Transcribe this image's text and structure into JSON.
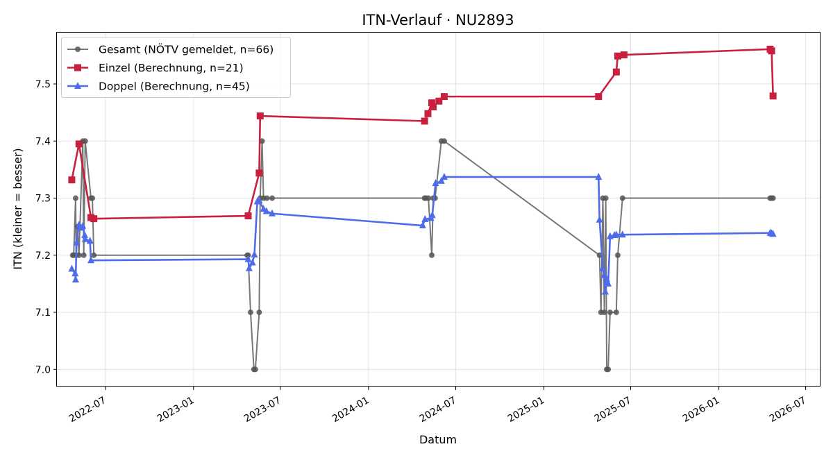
{
  "chart_data": {
    "type": "line",
    "title": "ITN-Verlauf · NU2893",
    "xlabel": "Datum",
    "ylabel": "ITN  (kleiner = besser)",
    "x_is_date": true,
    "xlim": [
      "2022-03-22",
      "2026-08-01"
    ],
    "ylim": [
      6.97,
      7.59
    ],
    "grid": true,
    "legend_position": "top-left",
    "x_ticks": [
      "2022-07-01",
      "2023-01-01",
      "2023-07-01",
      "2024-01-01",
      "2024-07-01",
      "2025-01-01",
      "2025-07-01",
      "2026-01-01",
      "2026-07-01"
    ],
    "x_tick_labels": [
      "2022-07",
      "2023-01",
      "2023-07",
      "2024-01",
      "2024-07",
      "2025-01",
      "2025-07",
      "2026-01",
      "2026-07"
    ],
    "y_ticks": [
      7.0,
      7.1,
      7.2,
      7.3,
      7.4,
      7.5
    ],
    "y_tick_labels": [
      "7.0",
      "7.1",
      "7.2",
      "7.3",
      "7.4",
      "7.5"
    ],
    "series": [
      {
        "name": "Gesamt (NÖTV gemeldet, n=66)",
        "color": "#555555",
        "marker": "circle",
        "x": [
          "2022-04-24",
          "2022-04-26",
          "2022-04-30",
          "2022-05-01",
          "2022-05-04",
          "2022-05-07",
          "2022-05-15",
          "2022-05-17",
          "2022-05-20",
          "2022-06-01",
          "2022-06-04",
          "2022-06-07",
          "2023-04-23",
          "2023-04-25",
          "2023-04-30",
          "2023-05-07",
          "2023-05-10",
          "2023-05-18",
          "2023-05-20",
          "2023-05-24",
          "2023-05-27",
          "2023-06-03",
          "2023-06-14",
          "2024-04-27",
          "2024-04-30",
          "2024-05-05",
          "2024-05-12",
          "2024-05-15",
          "2024-05-19",
          "2024-06-01",
          "2024-06-07",
          "2025-04-27",
          "2025-04-30",
          "2025-05-04",
          "2025-05-07",
          "2025-05-10",
          "2025-05-12",
          "2025-05-15",
          "2025-05-19",
          "2025-06-01",
          "2025-06-04",
          "2025-06-14",
          "2026-04-18",
          "2026-04-21",
          "2026-04-24"
        ],
        "y": [
          7.2,
          7.2,
          7.3,
          7.2,
          7.25,
          7.2,
          7.4,
          7.2,
          7.4,
          7.3,
          7.3,
          7.2,
          7.2,
          7.2,
          7.1,
          7.0,
          7.0,
          7.1,
          7.3,
          7.4,
          7.3,
          7.3,
          7.3,
          7.3,
          7.3,
          7.3,
          7.2,
          7.3,
          7.3,
          7.4,
          7.4,
          7.2,
          7.1,
          7.3,
          7.1,
          7.3,
          7.0,
          7.0,
          7.1,
          7.1,
          7.2,
          7.3,
          7.3,
          7.3,
          7.3
        ]
      },
      {
        "name": "Einzel (Berechnung, n=21)",
        "color": "#c8203f",
        "marker": "square",
        "x": [
          "2022-04-22",
          "2022-05-07",
          "2022-06-01",
          "2022-06-07",
          "2023-04-25",
          "2023-05-18",
          "2023-05-20",
          "2024-04-27",
          "2024-05-04",
          "2024-05-12",
          "2024-05-15",
          "2024-05-27",
          "2024-06-07",
          "2025-04-25",
          "2025-06-01",
          "2025-06-04",
          "2025-06-17",
          "2026-04-18",
          "2026-04-21",
          "2026-04-24"
        ],
        "y": [
          7.332,
          7.395,
          7.266,
          7.264,
          7.269,
          7.344,
          7.444,
          7.435,
          7.448,
          7.467,
          7.46,
          7.47,
          7.478,
          7.478,
          7.521,
          7.549,
          7.551,
          7.561,
          7.558,
          7.479
        ]
      },
      {
        "name": "Doppel (Berechnung, n=45)",
        "color": "#4e6cea",
        "marker": "triangle",
        "x": [
          "2022-04-22",
          "2022-04-29",
          "2022-04-30",
          "2022-05-02",
          "2022-05-07",
          "2022-05-11",
          "2022-05-15",
          "2022-05-19",
          "2022-05-20",
          "2022-05-30",
          "2022-06-01",
          "2023-04-25",
          "2023-04-27",
          "2023-05-04",
          "2023-05-08",
          "2023-05-14",
          "2023-05-18",
          "2023-05-27",
          "2023-06-02",
          "2023-06-14",
          "2024-04-23",
          "2024-04-28",
          "2024-05-10",
          "2024-05-13",
          "2024-05-20",
          "2024-06-01",
          "2024-06-07",
          "2025-04-25",
          "2025-04-27",
          "2025-05-04",
          "2025-05-07",
          "2025-05-09",
          "2025-05-12",
          "2025-05-15",
          "2025-05-19",
          "2025-05-28",
          "2025-06-01",
          "2025-06-14",
          "2026-04-18",
          "2026-04-21",
          "2026-04-24"
        ],
        "y": [
          7.176,
          7.168,
          7.157,
          7.222,
          7.253,
          7.248,
          7.251,
          7.235,
          7.228,
          7.225,
          7.191,
          7.193,
          7.177,
          7.187,
          7.201,
          7.294,
          7.296,
          7.281,
          7.277,
          7.273,
          7.252,
          7.263,
          7.265,
          7.27,
          7.326,
          7.33,
          7.337,
          7.337,
          7.262,
          7.177,
          7.165,
          7.136,
          7.158,
          7.15,
          7.233,
          7.235,
          7.236,
          7.236,
          7.239,
          7.238,
          7.237
        ]
      }
    ]
  }
}
